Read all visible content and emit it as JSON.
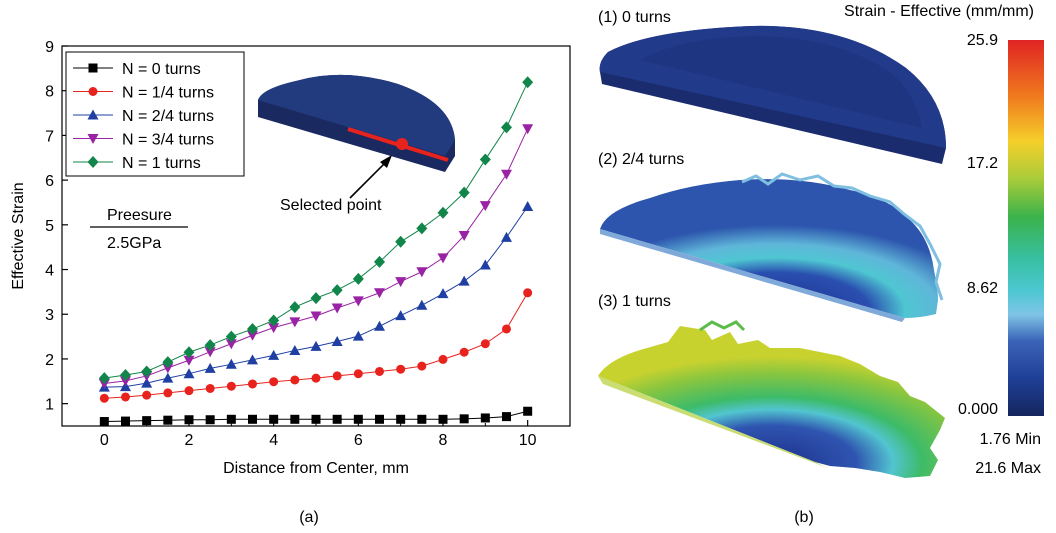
{
  "chart_data": {
    "type": "line",
    "xlabel": "Distance from Center, mm",
    "ylabel": "Effective Strain",
    "xlim": [
      -1,
      11
    ],
    "ylim": [
      0.5,
      9
    ],
    "xticks": [
      "0",
      "2",
      "4",
      "6",
      "8",
      "10"
    ],
    "yticks": [
      "1",
      "2",
      "3",
      "4",
      "5",
      "6",
      "7",
      "8",
      "9"
    ],
    "grid": false,
    "legend_position": "top-left",
    "x": [
      0,
      0.5,
      1,
      1.5,
      2,
      2.5,
      3,
      3.5,
      4,
      4.5,
      5,
      5.5,
      6,
      6.5,
      7,
      7.5,
      8,
      8.5,
      9,
      9.5,
      10
    ],
    "series": [
      {
        "name": "N = 0 turns",
        "color": "#000000",
        "marker": "square",
        "values": [
          0.6,
          0.61,
          0.62,
          0.63,
          0.64,
          0.64,
          0.65,
          0.65,
          0.65,
          0.65,
          0.65,
          0.65,
          0.65,
          0.65,
          0.65,
          0.65,
          0.65,
          0.66,
          0.68,
          0.71,
          0.83
        ]
      },
      {
        "name": "N = 1/4 turns",
        "color": "#e8231e",
        "marker": "circle",
        "values": [
          1.12,
          1.15,
          1.19,
          1.24,
          1.29,
          1.34,
          1.39,
          1.44,
          1.49,
          1.53,
          1.57,
          1.62,
          1.67,
          1.72,
          1.77,
          1.84,
          1.99,
          2.15,
          2.34,
          2.67,
          3.48
        ]
      },
      {
        "name": "N = 2/4 turns",
        "color": "#1f3fa3",
        "marker": "triangle-up",
        "values": [
          1.37,
          1.38,
          1.46,
          1.57,
          1.67,
          1.79,
          1.88,
          1.98,
          2.08,
          2.19,
          2.28,
          2.39,
          2.51,
          2.73,
          2.97,
          3.2,
          3.46,
          3.74,
          4.1,
          4.72,
          5.41
        ]
      },
      {
        "name": "N = 3/4 turns",
        "color": "#9a22a5",
        "marker": "triangle-down",
        "values": [
          1.45,
          1.51,
          1.62,
          1.8,
          1.97,
          2.16,
          2.34,
          2.53,
          2.7,
          2.83,
          2.96,
          3.14,
          3.3,
          3.48,
          3.73,
          3.95,
          4.26,
          4.76,
          5.43,
          6.13,
          7.15
        ]
      },
      {
        "name": "N = 1 turns",
        "color": "#12864a",
        "marker": "diamond",
        "values": [
          1.57,
          1.64,
          1.72,
          1.93,
          2.15,
          2.31,
          2.5,
          2.67,
          2.86,
          3.16,
          3.36,
          3.54,
          3.79,
          4.17,
          4.62,
          4.92,
          5.27,
          5.72,
          6.46,
          7.18,
          8.19
        ]
      }
    ],
    "annotations": {
      "pressure_label": "Preesure",
      "pressure_value": "2.5GPa",
      "selected_point": "Selected point"
    }
  },
  "panel_a_label": "(a)",
  "panel_b": {
    "label": "(b)",
    "titles": [
      "(1) 0 turns",
      "(2) 2/4 turns",
      "(3) 1 turns"
    ],
    "colorbar": {
      "title": "Strain - Effective (mm/mm)",
      "ticks": [
        "25.9",
        "17.2",
        "8.62",
        "0.000"
      ],
      "min_label": "1.76 Min",
      "max_label": "21.6 Max",
      "colors": [
        "#e02424",
        "#f07a1e",
        "#f4cf2a",
        "#a8cc3a",
        "#3bb24a",
        "#37bfa0",
        "#4ec7d3",
        "#7fc4e6",
        "#3a64b8",
        "#1f3f97",
        "#15265e"
      ]
    }
  }
}
